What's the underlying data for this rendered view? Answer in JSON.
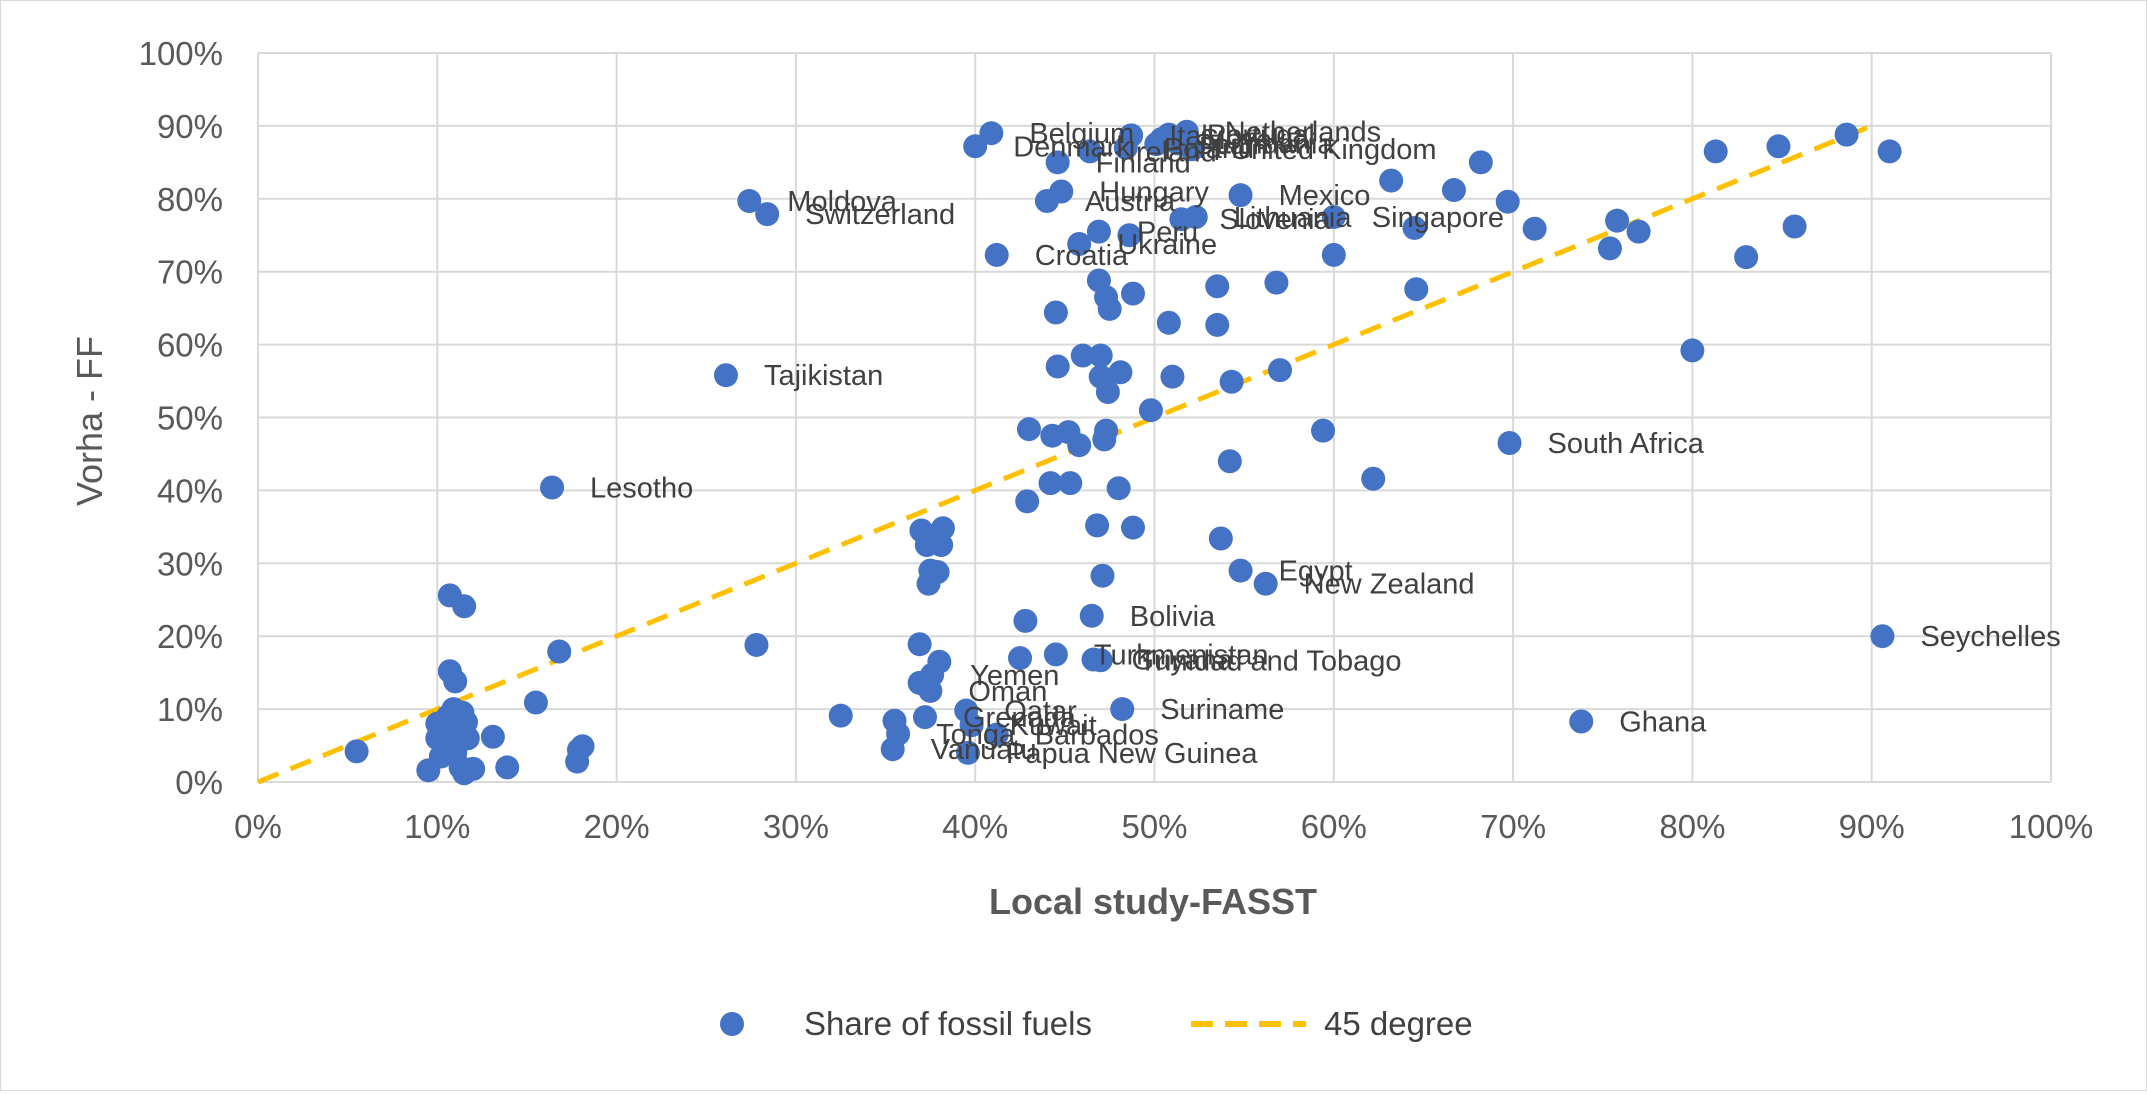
{
  "chart_data": {
    "type": "scatter",
    "xlabel": "Local study-FASST",
    "ylabel": "Vorha - FF",
    "xlim": [
      0,
      1
    ],
    "ylim": [
      0,
      1
    ],
    "x_ticks": [
      "0%",
      "10%",
      "20%",
      "30%",
      "40%",
      "50%",
      "60%",
      "70%",
      "80%",
      "90%",
      "100%"
    ],
    "y_ticks": [
      "0%",
      "10%",
      "20%",
      "30%",
      "40%",
      "50%",
      "60%",
      "70%",
      "80%",
      "90%",
      "100%"
    ],
    "grid": "on",
    "legend_position": "bottom",
    "series": [
      {
        "name": "Share of fossil fuels",
        "type": "scatter",
        "color": "#4472c4",
        "points": [
          {
            "x": 0.055,
            "y": 0.042,
            "label": ""
          },
          {
            "x": 0.095,
            "y": 0.016,
            "label": ""
          },
          {
            "x": 0.1,
            "y": 0.06,
            "label": ""
          },
          {
            "x": 0.1,
            "y": 0.08,
            "label": ""
          },
          {
            "x": 0.102,
            "y": 0.035,
            "label": ""
          },
          {
            "x": 0.104,
            "y": 0.072,
            "label": ""
          },
          {
            "x": 0.105,
            "y": 0.05,
            "label": ""
          },
          {
            "x": 0.106,
            "y": 0.09,
            "label": ""
          },
          {
            "x": 0.107,
            "y": 0.256,
            "label": ""
          },
          {
            "x": 0.107,
            "y": 0.152,
            "label": ""
          },
          {
            "x": 0.108,
            "y": 0.065,
            "label": ""
          },
          {
            "x": 0.109,
            "y": 0.1,
            "label": ""
          },
          {
            "x": 0.11,
            "y": 0.138,
            "label": ""
          },
          {
            "x": 0.11,
            "y": 0.04,
            "label": ""
          },
          {
            "x": 0.111,
            "y": 0.08,
            "label": ""
          },
          {
            "x": 0.112,
            "y": 0.055,
            "label": ""
          },
          {
            "x": 0.113,
            "y": 0.02,
            "label": ""
          },
          {
            "x": 0.114,
            "y": 0.095,
            "label": ""
          },
          {
            "x": 0.115,
            "y": 0.241,
            "label": ""
          },
          {
            "x": 0.115,
            "y": 0.012,
            "label": ""
          },
          {
            "x": 0.116,
            "y": 0.082,
            "label": ""
          },
          {
            "x": 0.117,
            "y": 0.06,
            "label": ""
          },
          {
            "x": 0.12,
            "y": 0.018,
            "label": ""
          },
          {
            "x": 0.131,
            "y": 0.062,
            "label": ""
          },
          {
            "x": 0.139,
            "y": 0.02,
            "label": ""
          },
          {
            "x": 0.155,
            "y": 0.109,
            "label": ""
          },
          {
            "x": 0.164,
            "y": 0.404,
            "label": "Lesotho"
          },
          {
            "x": 0.168,
            "y": 0.179,
            "label": ""
          },
          {
            "x": 0.178,
            "y": 0.028,
            "label": ""
          },
          {
            "x": 0.179,
            "y": 0.044,
            "label": ""
          },
          {
            "x": 0.181,
            "y": 0.049,
            "label": ""
          },
          {
            "x": 0.261,
            "y": 0.558,
            "label": "Tajikistan"
          },
          {
            "x": 0.274,
            "y": 0.797,
            "label": "Moldova"
          },
          {
            "x": 0.278,
            "y": 0.188,
            "label": ""
          },
          {
            "x": 0.284,
            "y": 0.779,
            "label": "Switzerland"
          },
          {
            "x": 0.325,
            "y": 0.091,
            "label": ""
          },
          {
            "x": 0.354,
            "y": 0.045,
            "label": "Vanuatu"
          },
          {
            "x": 0.355,
            "y": 0.084,
            "label": ""
          },
          {
            "x": 0.357,
            "y": 0.066,
            "label": "Tonga"
          },
          {
            "x": 0.369,
            "y": 0.189,
            "label": ""
          },
          {
            "x": 0.369,
            "y": 0.136,
            "label": ""
          },
          {
            "x": 0.37,
            "y": 0.345,
            "label": ""
          },
          {
            "x": 0.372,
            "y": 0.089,
            "label": "Grenada"
          },
          {
            "x": 0.373,
            "y": 0.325,
            "label": ""
          },
          {
            "x": 0.374,
            "y": 0.272,
            "label": ""
          },
          {
            "x": 0.375,
            "y": 0.125,
            "label": "Oman"
          },
          {
            "x": 0.375,
            "y": 0.29,
            "label": ""
          },
          {
            "x": 0.376,
            "y": 0.147,
            "label": "Yemen"
          },
          {
            "x": 0.379,
            "y": 0.288,
            "label": ""
          },
          {
            "x": 0.38,
            "y": 0.165,
            "label": ""
          },
          {
            "x": 0.381,
            "y": 0.325,
            "label": ""
          },
          {
            "x": 0.382,
            "y": 0.348,
            "label": ""
          },
          {
            "x": 0.395,
            "y": 0.098,
            "label": "Qatar"
          },
          {
            "x": 0.396,
            "y": 0.04,
            "label": "Papua New Guinea"
          },
          {
            "x": 0.398,
            "y": 0.078,
            "label": "Kuwait"
          },
          {
            "x": 0.4,
            "y": 0.872,
            "label": "Denmark"
          },
          {
            "x": 0.409,
            "y": 0.89,
            "label": "Belgium"
          },
          {
            "x": 0.412,
            "y": 0.723,
            "label": "Croatia"
          },
          {
            "x": 0.412,
            "y": 0.065,
            "label": "Barbados"
          },
          {
            "x": 0.425,
            "y": 0.17,
            "label": ""
          },
          {
            "x": 0.428,
            "y": 0.221,
            "label": ""
          },
          {
            "x": 0.429,
            "y": 0.385,
            "label": ""
          },
          {
            "x": 0.43,
            "y": 0.484,
            "label": ""
          },
          {
            "x": 0.44,
            "y": 0.797,
            "label": "Austria"
          },
          {
            "x": 0.442,
            "y": 0.41,
            "label": ""
          },
          {
            "x": 0.443,
            "y": 0.475,
            "label": ""
          },
          {
            "x": 0.445,
            "y": 0.644,
            "label": ""
          },
          {
            "x": 0.445,
            "y": 0.175,
            "label": "Turkmenistan"
          },
          {
            "x": 0.446,
            "y": 0.57,
            "label": ""
          },
          {
            "x": 0.446,
            "y": 0.85,
            "label": "Finland"
          },
          {
            "x": 0.448,
            "y": 0.81,
            "label": "Hungary"
          },
          {
            "x": 0.452,
            "y": 0.48,
            "label": ""
          },
          {
            "x": 0.453,
            "y": 0.41,
            "label": ""
          },
          {
            "x": 0.458,
            "y": 0.738,
            "label": "Ukraine"
          },
          {
            "x": 0.458,
            "y": 0.462,
            "label": ""
          },
          {
            "x": 0.46,
            "y": 0.585,
            "label": ""
          },
          {
            "x": 0.464,
            "y": 0.865,
            "label": "Ireland"
          },
          {
            "x": 0.465,
            "y": 0.228,
            "label": "Bolivia"
          },
          {
            "x": 0.466,
            "y": 0.168,
            "label": "Guyana"
          },
          {
            "x": 0.468,
            "y": 0.352,
            "label": ""
          },
          {
            "x": 0.469,
            "y": 0.688,
            "label": ""
          },
          {
            "x": 0.469,
            "y": 0.755,
            "label": "Peru"
          },
          {
            "x": 0.47,
            "y": 0.585,
            "label": ""
          },
          {
            "x": 0.47,
            "y": 0.556,
            "label": ""
          },
          {
            "x": 0.471,
            "y": 0.283,
            "label": ""
          },
          {
            "x": 0.472,
            "y": 0.47,
            "label": ""
          },
          {
            "x": 0.473,
            "y": 0.665,
            "label": ""
          },
          {
            "x": 0.473,
            "y": 0.482,
            "label": ""
          },
          {
            "x": 0.474,
            "y": 0.535,
            "label": ""
          },
          {
            "x": 0.475,
            "y": 0.649,
            "label": ""
          },
          {
            "x": 0.48,
            "y": 0.403,
            "label": ""
          },
          {
            "x": 0.481,
            "y": 0.562,
            "label": ""
          },
          {
            "x": 0.482,
            "y": 0.1,
            "label": "Suriname"
          },
          {
            "x": 0.484,
            "y": 0.87,
            "label": "Poland"
          },
          {
            "x": 0.486,
            "y": 0.75,
            "label": ""
          },
          {
            "x": 0.487,
            "y": 0.887,
            "label": "Italy"
          },
          {
            "x": 0.488,
            "y": 0.67,
            "label": ""
          },
          {
            "x": 0.488,
            "y": 0.349,
            "label": ""
          },
          {
            "x": 0.498,
            "y": 0.51,
            "label": ""
          },
          {
            "x": 0.501,
            "y": 0.875,
            "label": "Spain"
          },
          {
            "x": 0.504,
            "y": 0.882,
            "label": "Slovakia"
          },
          {
            "x": 0.508,
            "y": 0.888,
            "label": "Portugal"
          },
          {
            "x": 0.508,
            "y": 0.63,
            "label": ""
          },
          {
            "x": 0.51,
            "y": 0.556,
            "label": ""
          },
          {
            "x": 0.513,
            "y": 0.876,
            "label": "Lithuania"
          },
          {
            "x": 0.515,
            "y": 0.772,
            "label": "Slovenia"
          },
          {
            "x": 0.518,
            "y": 0.892,
            "label": "Netherlands"
          },
          {
            "x": 0.521,
            "y": 0.868,
            "label": "United Kingdom"
          },
          {
            "x": 0.523,
            "y": 0.775,
            "label": "Lithuania"
          },
          {
            "x": 0.535,
            "y": 0.627,
            "label": ""
          },
          {
            "x": 0.535,
            "y": 0.68,
            "label": ""
          },
          {
            "x": 0.537,
            "y": 0.334,
            "label": ""
          },
          {
            "x": 0.542,
            "y": 0.44,
            "label": ""
          },
          {
            "x": 0.543,
            "y": 0.549,
            "label": ""
          },
          {
            "x": 0.548,
            "y": 0.805,
            "label": "Mexico"
          },
          {
            "x": 0.548,
            "y": 0.29,
            "label": "Egypt"
          },
          {
            "x": 0.562,
            "y": 0.272,
            "label": "New Zealand"
          },
          {
            "x": 0.568,
            "y": 0.685,
            "label": ""
          },
          {
            "x": 0.57,
            "y": 0.565,
            "label": ""
          },
          {
            "x": 0.594,
            "y": 0.482,
            "label": ""
          },
          {
            "x": 0.6,
            "y": 0.723,
            "label": ""
          },
          {
            "x": 0.6,
            "y": 0.775,
            "label": "Singapore"
          },
          {
            "x": 0.622,
            "y": 0.416,
            "label": ""
          },
          {
            "x": 0.632,
            "y": 0.825,
            "label": ""
          },
          {
            "x": 0.645,
            "y": 0.76,
            "label": ""
          },
          {
            "x": 0.646,
            "y": 0.676,
            "label": ""
          },
          {
            "x": 0.667,
            "y": 0.812,
            "label": ""
          },
          {
            "x": 0.682,
            "y": 0.85,
            "label": ""
          },
          {
            "x": 0.697,
            "y": 0.796,
            "label": ""
          },
          {
            "x": 0.698,
            "y": 0.465,
            "label": "South Africa"
          },
          {
            "x": 0.712,
            "y": 0.759,
            "label": ""
          },
          {
            "x": 0.738,
            "y": 0.083,
            "label": "Ghana"
          },
          {
            "x": 0.754,
            "y": 0.732,
            "label": ""
          },
          {
            "x": 0.758,
            "y": 0.77,
            "label": ""
          },
          {
            "x": 0.77,
            "y": 0.755,
            "label": ""
          },
          {
            "x": 0.8,
            "y": 0.592,
            "label": ""
          },
          {
            "x": 0.813,
            "y": 0.865,
            "label": ""
          },
          {
            "x": 0.83,
            "y": 0.72,
            "label": ""
          },
          {
            "x": 0.848,
            "y": 0.872,
            "label": ""
          },
          {
            "x": 0.857,
            "y": 0.762,
            "label": ""
          },
          {
            "x": 0.886,
            "y": 0.888,
            "label": ""
          },
          {
            "x": 0.91,
            "y": 0.865,
            "label": ""
          },
          {
            "x": 0.906,
            "y": 0.2,
            "label": "Seychelles"
          },
          {
            "x": 0.47,
            "y": 0.167,
            "label": "Trinidad and Tobago"
          }
        ]
      },
      {
        "name": "45 degree",
        "type": "line",
        "style": "dashed",
        "color": "#ffc000",
        "x": [
          0,
          0.9
        ],
        "y": [
          0,
          0.9
        ]
      }
    ]
  }
}
